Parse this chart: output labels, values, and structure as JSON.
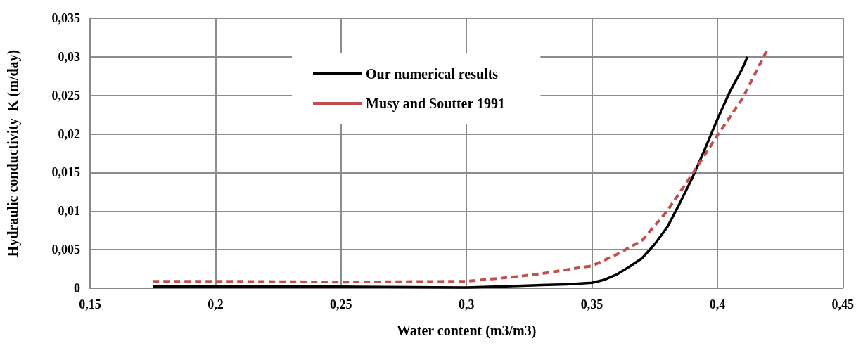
{
  "chart_data": {
    "type": "line",
    "xlabel": "Water content (m3/m3)",
    "ylabel": "Hydraulic conductivity  K (m/day)",
    "xlim": [
      0.15,
      0.45
    ],
    "xticks": [
      {
        "value": 0.15,
        "label": "0,15"
      },
      {
        "value": 0.2,
        "label": "0,2"
      },
      {
        "value": 0.25,
        "label": "0,25"
      },
      {
        "value": 0.3,
        "label": "0,3"
      },
      {
        "value": 0.35,
        "label": "0,35"
      },
      {
        "value": 0.4,
        "label": "0,4"
      },
      {
        "value": 0.45,
        "label": "0,45"
      }
    ],
    "ylim": [
      0,
      0.035
    ],
    "yticks": [
      0,
      {
        "value": 0.005,
        "label": "0,005"
      },
      {
        "value": 0.01,
        "label": "0,01"
      },
      {
        "value": 0.015,
        "label": "0,015"
      },
      {
        "value": 0.02,
        "label": "0,02"
      },
      {
        "value": 0.025,
        "label": "0,025"
      },
      {
        "value": 0.03,
        "label": "0,03"
      },
      {
        "value": 0.035,
        "label": "0,035"
      }
    ],
    "grid": true,
    "legend": "top",
    "marker": "none",
    "series": [
      {
        "name": "Our numerical results",
        "color": "#000000",
        "line_style": "solid",
        "x": [
          0.175,
          0.2,
          0.25,
          0.3,
          0.32,
          0.33,
          0.34,
          0.35,
          0.355,
          0.36,
          0.365,
          0.37,
          0.375,
          0.38,
          0.385,
          0.39,
          0.395,
          0.4,
          0.405,
          0.41,
          0.412
        ],
        "values": [
          0.0002,
          0.0002,
          0.0002,
          0.0001,
          0.0003,
          0.0004,
          0.0005,
          0.0007,
          0.0011,
          0.0018,
          0.0028,
          0.0039,
          0.0057,
          0.0079,
          0.011,
          0.0143,
          0.018,
          0.0219,
          0.0255,
          0.0285,
          0.03
        ]
      },
      {
        "name": "Musy and Soutter 1991",
        "color": "#c0504d",
        "line_style": "dashed",
        "x": [
          0.175,
          0.2,
          0.25,
          0.3,
          0.31,
          0.32,
          0.33,
          0.34,
          0.35,
          0.36,
          0.37,
          0.38,
          0.39,
          0.4,
          0.41,
          0.42
        ],
        "values": [
          0.0009,
          0.0009,
          0.0008,
          0.0009,
          0.0012,
          0.0015,
          0.0019,
          0.0024,
          0.0029,
          0.0044,
          0.0062,
          0.01,
          0.0148,
          0.0198,
          0.0246,
          0.031
        ]
      }
    ]
  }
}
